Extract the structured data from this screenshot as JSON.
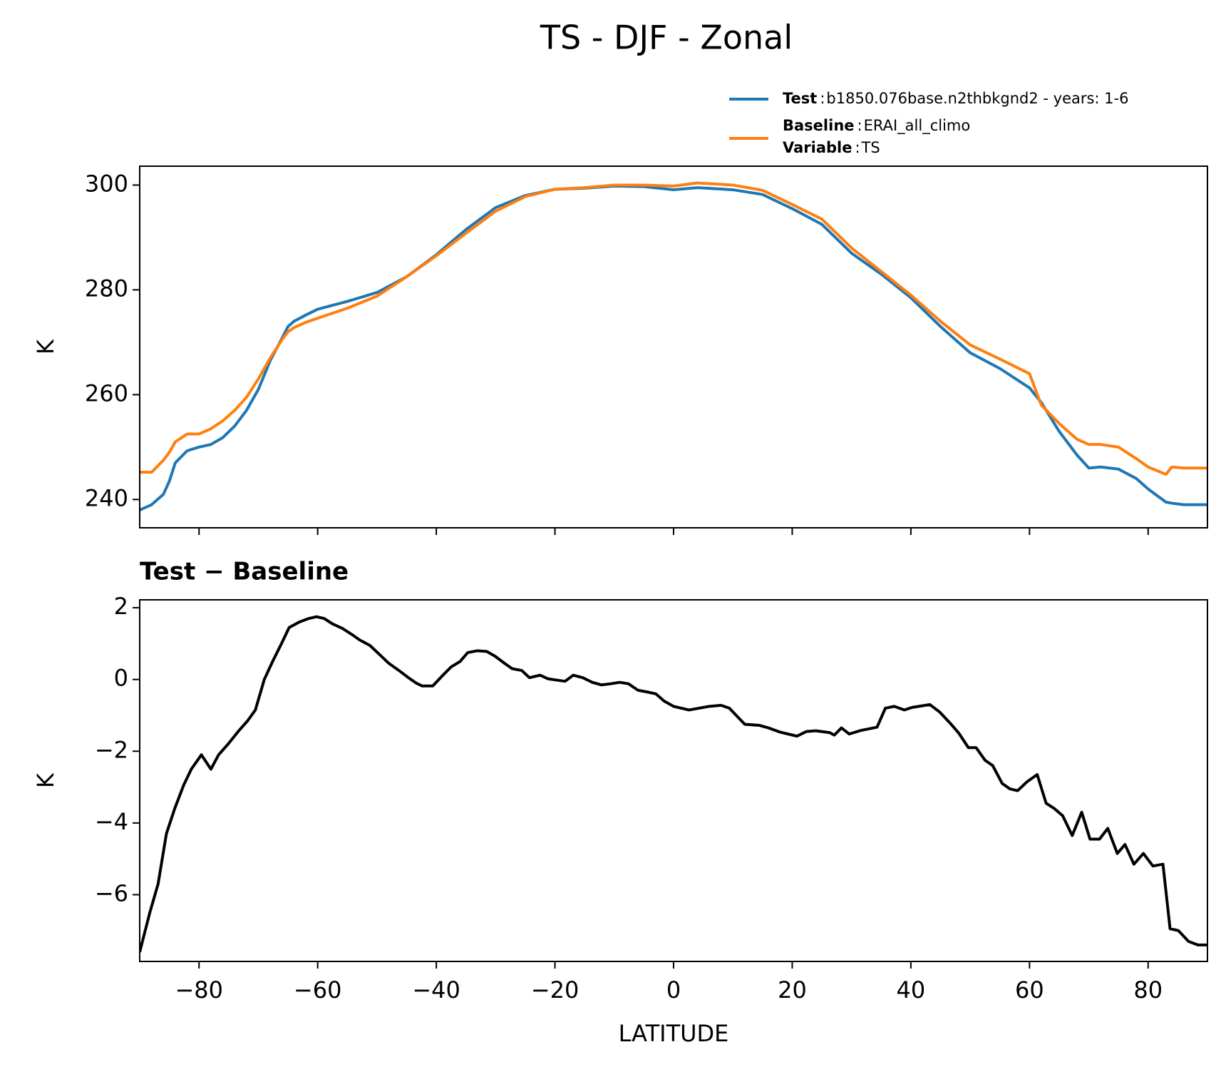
{
  "title": "TS - DJF - Zonal",
  "chart_data": [
    {
      "type": "line",
      "ylabel": "K",
      "xlim": [
        -90,
        90
      ],
      "ylim": [
        234.6,
        303.6
      ],
      "xticks": [
        -80,
        -60,
        -40,
        -20,
        0,
        20,
        40,
        60,
        80
      ],
      "xticklabels": false,
      "yticks": [
        240,
        260,
        280,
        300
      ],
      "legend_loc": "above right",
      "legend_separator": ":",
      "legend_extra": {
        "name": "Variable",
        "label": "TS"
      },
      "x": [
        -90,
        -88,
        -86,
        -85,
        -84,
        -82,
        -80,
        -78,
        -76,
        -74,
        -72,
        -70,
        -68,
        -66,
        -65,
        -64,
        -62,
        -60,
        -55,
        -50,
        -45,
        -40,
        -35,
        -30,
        -25,
        -20,
        -15,
        -10,
        -5,
        0,
        4,
        10,
        15,
        20,
        25,
        30,
        35,
        40,
        45,
        50,
        55,
        60,
        62,
        65,
        68,
        70,
        72,
        75,
        78,
        80,
        83,
        84,
        86,
        90
      ],
      "series": [
        {
          "name": "Test",
          "label": "b1850.076base.n2thbkgnd2 - years: 1-6",
          "color": "#1f77b4",
          "values": [
            238,
            239,
            241,
            243.5,
            247,
            249.3,
            250,
            250.5,
            251.8,
            254,
            257,
            261,
            266.5,
            270.8,
            273,
            274,
            275.2,
            276.3,
            277.8,
            279.5,
            282.5,
            286.7,
            291.5,
            295.7,
            298,
            299.2,
            299.4,
            299.8,
            299.7,
            299.1,
            299.5,
            299.1,
            298.2,
            295.5,
            292.5,
            287,
            283,
            278.5,
            273,
            268,
            265,
            261.3,
            258.5,
            253,
            248.5,
            246,
            246.2,
            245.8,
            244,
            242,
            239.5,
            239.3,
            239,
            239
          ]
        },
        {
          "name": "Baseline",
          "label": "ERAI_all_climo",
          "color": "#ff7f0e",
          "values": [
            245.2,
            245.2,
            247.5,
            249,
            251,
            252.5,
            252.5,
            253.5,
            255,
            257,
            259.5,
            263,
            267,
            270.5,
            272,
            272.8,
            273.8,
            274.6,
            276.5,
            278.8,
            282.5,
            286.5,
            290.8,
            295,
            297.8,
            299.2,
            299.5,
            300,
            300,
            299.8,
            300.4,
            300,
            299,
            296.3,
            293.5,
            288,
            283.5,
            279,
            274,
            269.5,
            266.8,
            264,
            258,
            254.5,
            251.5,
            250.5,
            250.5,
            250,
            247.8,
            246.2,
            244.8,
            246.2,
            246,
            246
          ]
        }
      ]
    },
    {
      "type": "line",
      "subtitle": "Test − Baseline",
      "ylabel": "K",
      "xlabel": "LATITUDE",
      "xlim": [
        -90,
        90
      ],
      "ylim": [
        -7.86,
        2.22
      ],
      "xticks": [
        {
          "value": -80,
          "label": "−80"
        },
        {
          "value": -60,
          "label": "−60"
        },
        {
          "value": -40,
          "label": "−40"
        },
        {
          "value": -20,
          "label": "−20"
        },
        0,
        20,
        40,
        60,
        80
      ],
      "yticks": [
        {
          "value": -6,
          "label": "−6"
        },
        {
          "value": -4,
          "label": "−4"
        },
        {
          "value": -2,
          "label": "−2"
        },
        0,
        2
      ],
      "color": "#000000",
      "x": [
        -90,
        -88.3,
        -86.9,
        -85.5,
        -84.1,
        -82.6,
        -81.3,
        -79.6,
        -78,
        -76.7,
        -75.1,
        -73.4,
        -71.8,
        -70.5,
        -69,
        -67.6,
        -66.1,
        -64.8,
        -63.1,
        -61.5,
        -60.2,
        -58.9,
        -57.5,
        -55.8,
        -54.2,
        -52.9,
        -51.2,
        -49.6,
        -48,
        -46.3,
        -44.7,
        -43.4,
        -42.4,
        -40.6,
        -39,
        -37.5,
        -36,
        -34.7,
        -33.1,
        -31.5,
        -30.1,
        -28.5,
        -27.2,
        -25.6,
        -24.3,
        -22.5,
        -21.2,
        -19.6,
        -18.3,
        -16.9,
        -15.3,
        -13.7,
        -12.2,
        -10.6,
        -9.1,
        -7.6,
        -6,
        -4.4,
        -3,
        -1.6,
        0,
        2.6,
        6,
        8,
        9.4,
        12,
        14.5,
        16,
        18,
        20.8,
        22.4,
        24,
        26.3,
        27.1,
        28.3,
        29.6,
        31.6,
        34.3,
        35.7,
        37.2,
        38.9,
        40.2,
        43.2,
        44.8,
        46.8,
        48.1,
        49.7,
        51,
        52.5,
        53.8,
        55.4,
        56.7,
        58,
        59.6,
        61.3,
        62.8,
        64.2,
        65.6,
        67.2,
        68.8,
        70.2,
        71.8,
        73.2,
        74.8,
        76.1,
        77.6,
        79.2,
        80.8,
        82.5,
        83.7,
        85.1,
        86.8,
        88.4,
        90
      ],
      "values": [
        -7.6,
        -6.5,
        -5.7,
        -4.3,
        -3.6,
        -2.95,
        -2.5,
        -2.1,
        -2.5,
        -2.1,
        -1.8,
        -1.45,
        -1.15,
        -0.85,
        0,
        0.5,
        1,
        1.45,
        1.6,
        1.7,
        1.75,
        1.7,
        1.55,
        1.42,
        1.25,
        1.1,
        0.95,
        0.7,
        0.45,
        0.25,
        0.05,
        -0.1,
        -0.18,
        -0.18,
        0.1,
        0.35,
        0.5,
        0.75,
        0.8,
        0.78,
        0.65,
        0.45,
        0.3,
        0.25,
        0.05,
        0.12,
        0.02,
        -0.02,
        -0.05,
        0.12,
        0.05,
        -0.08,
        -0.15,
        -0.12,
        -0.08,
        -0.12,
        -0.3,
        -0.35,
        -0.4,
        -0.6,
        -0.75,
        -0.85,
        -0.75,
        -0.72,
        -0.8,
        -1.25,
        -1.28,
        -1.35,
        -1.47,
        -1.58,
        -1.45,
        -1.43,
        -1.48,
        -1.55,
        -1.35,
        -1.52,
        -1.42,
        -1.33,
        -0.8,
        -0.75,
        -0.85,
        -0.78,
        -0.7,
        -0.9,
        -1.25,
        -1.5,
        -1.9,
        -1.9,
        -2.25,
        -2.4,
        -2.9,
        -3.05,
        -3.1,
        -2.85,
        -2.65,
        -3.45,
        -3.6,
        -3.8,
        -4.35,
        -3.7,
        -4.45,
        -4.45,
        -4.15,
        -4.85,
        -4.6,
        -5.15,
        -4.85,
        -5.2,
        -5.15,
        -6.95,
        -7,
        -7.3,
        -7.4,
        -7.4
      ]
    }
  ]
}
